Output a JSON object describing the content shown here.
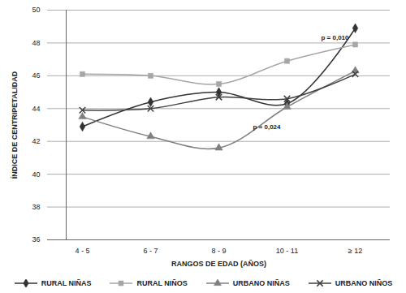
{
  "chart_data": {
    "type": "line",
    "x_label": "RANGOS DE EDAD (AÑOS)",
    "y_label": "ÍNDICE DE CENTRIPETALIDAD",
    "categories": [
      "4 - 5",
      "6 - 7",
      "8 - 9",
      "10 - 11",
      "≥ 12"
    ],
    "ylim": [
      36,
      50
    ],
    "yticks": [
      36,
      38,
      40,
      42,
      44,
      46,
      48,
      50
    ],
    "grid": true,
    "legend": "bottom",
    "series": [
      {
        "name": "RURAL NIÑAS",
        "color": "#333333",
        "marker": "diamond",
        "values": [
          42.9,
          44.4,
          45.0,
          44.3,
          48.9
        ]
      },
      {
        "name": "RURAL NIÑOS",
        "color": "#a6a6a6",
        "marker": "square",
        "values": [
          46.1,
          46.0,
          45.5,
          46.9,
          47.9
        ]
      },
      {
        "name": "URBANO NIÑAS",
        "color": "#7f7f7f",
        "marker": "triangle",
        "values": [
          43.5,
          42.3,
          41.6,
          44.1,
          46.3
        ]
      },
      {
        "name": "URBANO NIÑOS",
        "color": "#404040",
        "marker": "times",
        "values": [
          43.9,
          44.0,
          44.7,
          44.6,
          46.1
        ]
      }
    ],
    "annotations": [
      {
        "text": "p = 0,010",
        "x": "≥ 12",
        "y": 48.3
      },
      {
        "text": "p = 0,024",
        "x": "10 - 11",
        "y": 42.9
      }
    ]
  }
}
